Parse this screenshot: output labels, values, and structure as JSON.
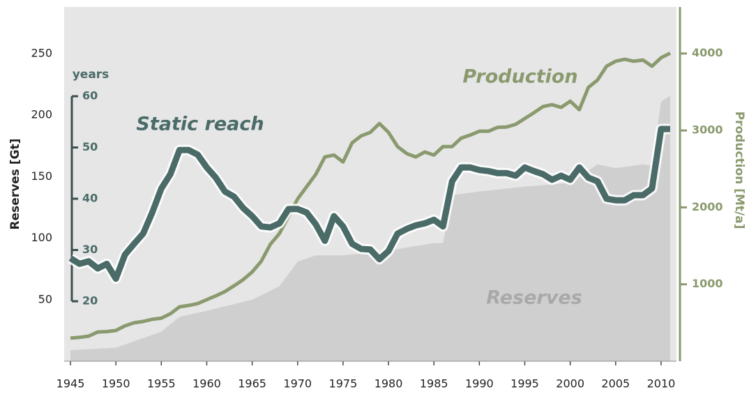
{
  "chart_data": {
    "type": "line",
    "y_label": "Reserves [Gt]",
    "y2_label": "Production [Mt/a]",
    "y3_label": "years",
    "xlim": [
      1944,
      2012
    ],
    "xticks": [
      1945,
      1950,
      1955,
      1960,
      1965,
      1970,
      1975,
      1980,
      1985,
      1990,
      1995,
      2000,
      2005,
      2010
    ],
    "ylim": [
      0,
      288
    ],
    "yticks": [
      50,
      100,
      150,
      200,
      250
    ],
    "y2lim": [
      0,
      4605
    ],
    "y2ticks": [
      1000,
      2000,
      3000,
      4000
    ],
    "y3lim": [
      20,
      60
    ],
    "y3ticks": [
      20,
      30,
      40,
      50,
      60
    ],
    "x": [
      1945,
      1946,
      1947,
      1948,
      1949,
      1950,
      1951,
      1952,
      1953,
      1954,
      1955,
      1956,
      1957,
      1958,
      1959,
      1960,
      1961,
      1962,
      1963,
      1964,
      1965,
      1966,
      1967,
      1968,
      1969,
      1970,
      1971,
      1972,
      1973,
      1974,
      1975,
      1976,
      1977,
      1978,
      1979,
      1980,
      1981,
      1982,
      1983,
      1984,
      1985,
      1986,
      1987,
      1988,
      1989,
      1990,
      1991,
      1992,
      1993,
      1994,
      1995,
      1996,
      1997,
      1998,
      1999,
      2000,
      2001,
      2002,
      2003,
      2004,
      2005,
      2006,
      2007,
      2008,
      2009,
      2010,
      2011
    ],
    "series": [
      {
        "name": "Reserves",
        "type": "area",
        "color": "#cfcfcf",
        "x": [
          1945,
          1950,
          1955,
          1957,
          1960,
          1965,
          1968,
          1970,
          1972,
          1975,
          1980,
          1985,
          1986,
          1987,
          1990,
          1995,
          2000,
          2003,
          2005,
          2008,
          2009,
          2010,
          2011
        ],
        "values": [
          9,
          11,
          24,
          36,
          41,
          50,
          61,
          81,
          86,
          86,
          90,
          96,
          96,
          135,
          138,
          142,
          145,
          160,
          157,
          160,
          159,
          211,
          216
        ]
      },
      {
        "name": "Production",
        "axis": "y2",
        "color": "#8a9a6e",
        "values": [
          300,
          310,
          326,
          380,
          385,
          400,
          460,
          500,
          517,
          545,
          560,
          617,
          707,
          725,
          750,
          800,
          850,
          905,
          980,
          1060,
          1160,
          1300,
          1520,
          1660,
          1885,
          2110,
          2270,
          2430,
          2655,
          2680,
          2590,
          2840,
          2930,
          2975,
          3090,
          2975,
          2790,
          2700,
          2655,
          2720,
          2680,
          2790,
          2790,
          2900,
          2940,
          2990,
          2990,
          3040,
          3045,
          3080,
          3155,
          3230,
          3310,
          3335,
          3300,
          3380,
          3270,
          3560,
          3655,
          3835,
          3900,
          3925,
          3900,
          3915,
          3835,
          3945,
          4005
        ]
      },
      {
        "name": "Static reach",
        "axis": "y3",
        "color": "#4a6b68",
        "values": [
          28.4,
          27.3,
          27.8,
          26.4,
          27.3,
          24.4,
          29.1,
          31.2,
          33.2,
          37.3,
          42,
          44.8,
          49.5,
          49.5,
          48.6,
          46.1,
          44.1,
          41.4,
          40.4,
          38.2,
          36.6,
          34.6,
          34.4,
          35.2,
          38,
          38,
          37.3,
          35,
          31.8,
          36.6,
          34.6,
          31.2,
          30.2,
          30.1,
          28.2,
          29.8,
          33.2,
          34.1,
          34.8,
          35.2,
          35.9,
          34.6,
          43.4,
          46.1,
          46.1,
          45.6,
          45.4,
          45,
          45,
          44.5,
          46.1,
          45.4,
          44.8,
          43.7,
          44.5,
          43.7,
          46.1,
          44.1,
          43.4,
          40,
          39.7,
          39.7,
          40.7,
          40.7,
          42,
          53.6,
          53.6
        ]
      }
    ]
  }
}
